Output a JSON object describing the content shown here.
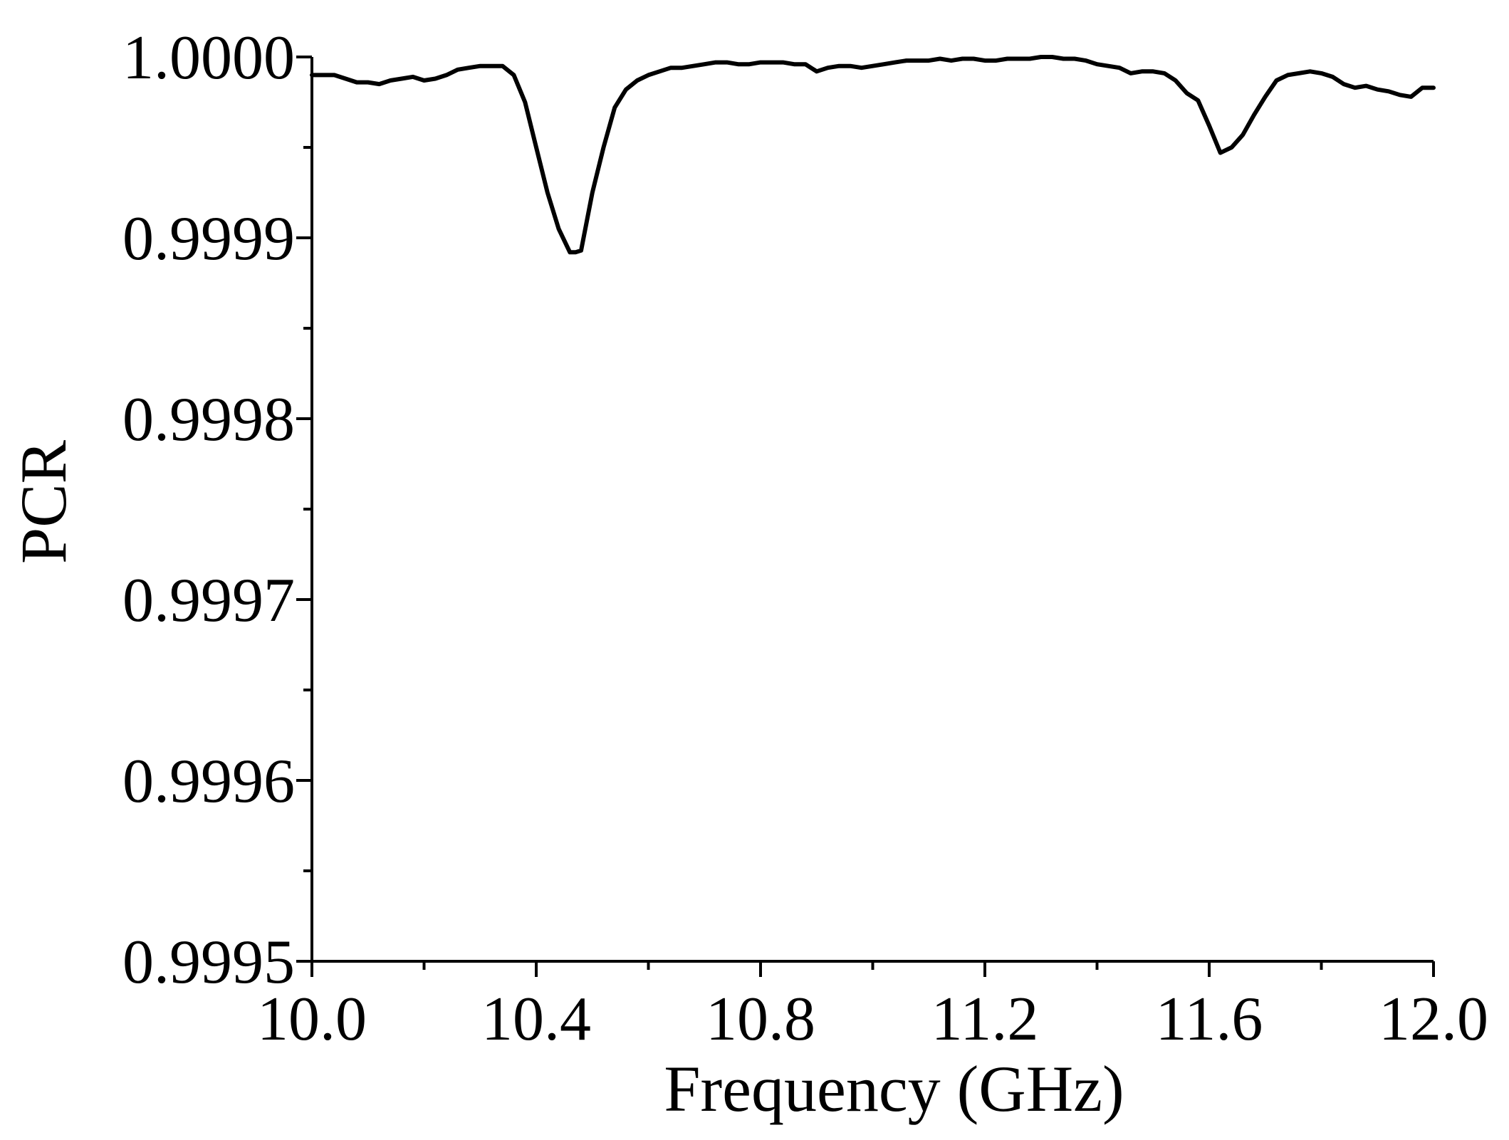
{
  "chart_data": {
    "type": "line",
    "xlabel": "Frequency (GHz)",
    "ylabel": "PCR",
    "xlim": [
      10.0,
      12.0
    ],
    "ylim": [
      0.9995,
      1.0
    ],
    "x_major_ticks": [
      "10.0",
      "10.4",
      "10.8",
      "11.2",
      "11.6",
      "12.0"
    ],
    "x_minor_step": 0.2,
    "y_major_ticks": [
      "0.9995",
      "0.9996",
      "0.9997",
      "0.9998",
      "0.9999",
      "1.0000"
    ],
    "y_minor_step": 5e-05,
    "grid": false,
    "legend": "none",
    "series": [
      {
        "color": "#000000",
        "x": [
          10.0,
          10.02,
          10.04,
          10.06,
          10.08,
          10.1,
          10.12,
          10.14,
          10.16,
          10.18,
          10.2,
          10.22,
          10.24,
          10.26,
          10.28,
          10.3,
          10.32,
          10.34,
          10.36,
          10.38,
          10.4,
          10.42,
          10.44,
          10.46,
          10.47,
          10.48,
          10.5,
          10.52,
          10.54,
          10.56,
          10.58,
          10.6,
          10.62,
          10.64,
          10.66,
          10.68,
          10.7,
          10.72,
          10.74,
          10.76,
          10.78,
          10.8,
          10.82,
          10.84,
          10.86,
          10.88,
          10.9,
          10.92,
          10.94,
          10.96,
          10.98,
          11.0,
          11.02,
          11.04,
          11.06,
          11.08,
          11.1,
          11.12,
          11.14,
          11.16,
          11.18,
          11.2,
          11.22,
          11.24,
          11.26,
          11.28,
          11.3,
          11.32,
          11.34,
          11.36,
          11.38,
          11.4,
          11.42,
          11.44,
          11.46,
          11.48,
          11.5,
          11.52,
          11.54,
          11.56,
          11.58,
          11.6,
          11.62,
          11.64,
          11.66,
          11.68,
          11.7,
          11.72,
          11.74,
          11.76,
          11.78,
          11.8,
          11.82,
          11.84,
          11.86,
          11.88,
          11.9,
          11.92,
          11.94,
          11.96,
          11.98,
          12.0
        ],
        "y": [
          0.99999,
          0.99999,
          0.99999,
          0.999988,
          0.999986,
          0.999986,
          0.999985,
          0.999987,
          0.999988,
          0.999989,
          0.999987,
          0.999988,
          0.99999,
          0.999993,
          0.999994,
          0.999995,
          0.999995,
          0.999995,
          0.99999,
          0.999975,
          0.99995,
          0.999925,
          0.999905,
          0.999892,
          0.999892,
          0.999893,
          0.999925,
          0.99995,
          0.999972,
          0.999982,
          0.999987,
          0.99999,
          0.999992,
          0.999994,
          0.999994,
          0.999995,
          0.999996,
          0.999997,
          0.999997,
          0.999996,
          0.999996,
          0.999997,
          0.999997,
          0.999997,
          0.999996,
          0.999996,
          0.999992,
          0.999994,
          0.999995,
          0.999995,
          0.999994,
          0.999995,
          0.999996,
          0.999997,
          0.999998,
          0.999998,
          0.999998,
          0.999999,
          0.999998,
          0.999999,
          0.999999,
          0.999998,
          0.999998,
          0.999999,
          0.999999,
          0.999999,
          1.0,
          1.0,
          0.999999,
          0.999999,
          0.999998,
          0.999996,
          0.999995,
          0.999994,
          0.999991,
          0.999992,
          0.999992,
          0.999991,
          0.999987,
          0.99998,
          0.999976,
          0.999962,
          0.999947,
          0.99995,
          0.999957,
          0.999968,
          0.999978,
          0.999987,
          0.99999,
          0.999991,
          0.999992,
          0.999991,
          0.999989,
          0.999985,
          0.999983,
          0.999984,
          0.999982,
          0.999981,
          0.999979,
          0.999978,
          0.999983,
          0.999983
        ]
      }
    ]
  }
}
